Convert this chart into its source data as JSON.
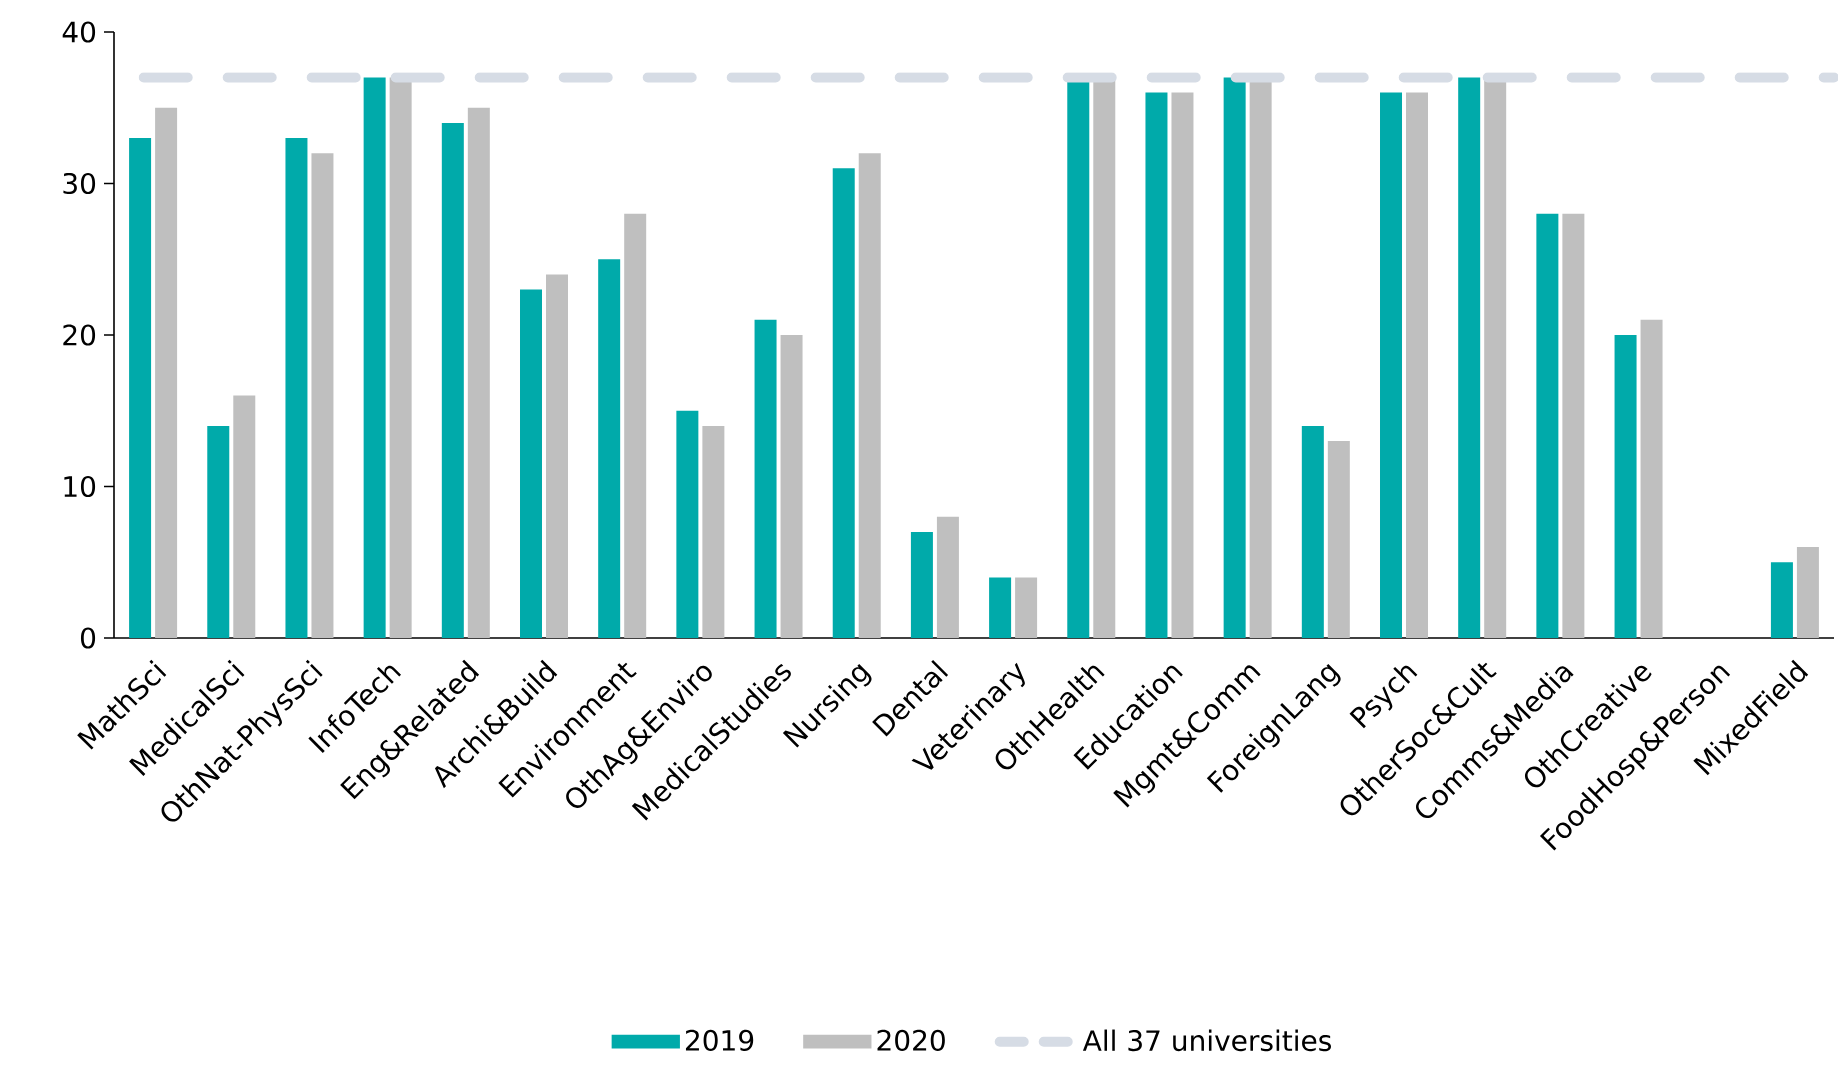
{
  "chart_data": {
    "type": "bar",
    "categories": [
      "MathSci",
      "MedicalSci",
      "OthNat-PhysSci",
      "InfoTech",
      "Eng&Related",
      "Archi&Build",
      "Environment",
      "OthAg&Enviro",
      "MedicalStudies",
      "Nursing",
      "Dental",
      "Veterinary",
      "OthHealth",
      "Education",
      "Mgmt&Comm",
      "ForeignLang",
      "Psych",
      "OtherSoc&Cult",
      "Comms&Media",
      "OthCreative",
      "FoodHosp&Person",
      "MixedField"
    ],
    "series": [
      {
        "name": "2019",
        "color": "#00aaaa",
        "values": [
          33,
          14,
          33,
          37,
          34,
          23,
          25,
          15,
          21,
          31,
          7,
          4,
          37,
          36,
          37,
          14,
          36,
          37,
          28,
          20,
          null,
          5
        ]
      },
      {
        "name": "2020",
        "color": "#bfbfbf",
        "values": [
          35,
          16,
          32,
          37,
          35,
          24,
          28,
          14,
          20,
          32,
          8,
          4,
          37,
          36,
          37,
          13,
          36,
          37,
          28,
          21,
          null,
          6
        ]
      }
    ],
    "ylim": [
      0,
      40
    ],
    "yticks": [
      0,
      10,
      20,
      30,
      40
    ],
    "grid": false,
    "legend": "bottom",
    "ref_lines": [
      {
        "axis": "y",
        "value": 37,
        "label": "All 37 universities",
        "color": "#d6dce5",
        "line_style": "dashed"
      }
    ]
  }
}
